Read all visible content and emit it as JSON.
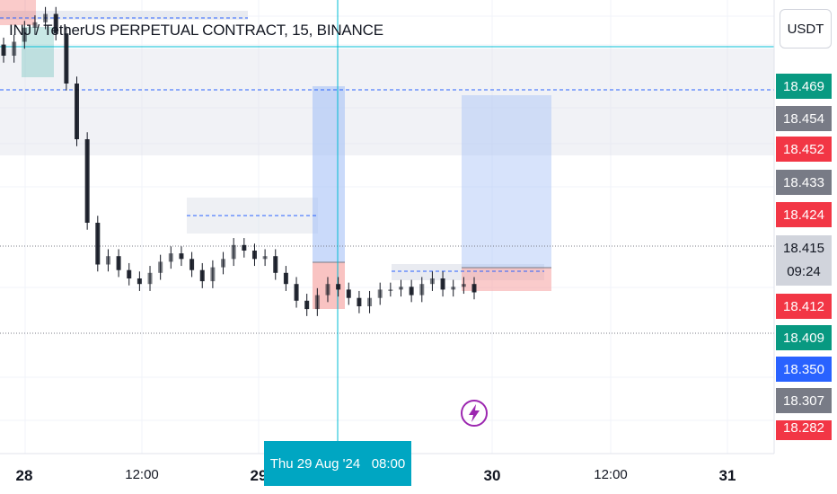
{
  "title": "INJ / TetherUS PERPETUAL CONTRACT, 15, BINANCE",
  "currency_button": "USDT",
  "colors": {
    "up": "#26a69a",
    "down": "#ef5350",
    "blue_line": "#2962ff",
    "crosshair": "#00bcd4",
    "zone_gray": "#e0e3eb",
    "target_blue": "#a6c1f7",
    "stop_red": "#f7a9a8"
  },
  "price_scale": [
    {
      "label": "18.469",
      "color": "#089981"
    },
    {
      "label": "18.454",
      "color": "#787b86"
    },
    {
      "label": "18.452",
      "color": "#f23645"
    },
    {
      "label": "18.433",
      "color": "#787b86"
    },
    {
      "label": "18.424",
      "color": "#f23645"
    },
    {
      "label": "18.415",
      "countdown": "09:24",
      "color": "#d1d4dc"
    },
    {
      "label": "18.412",
      "color": "#f23645"
    },
    {
      "label": "18.409",
      "color": "#089981"
    },
    {
      "label": "18.350",
      "color": "#2962ff"
    },
    {
      "label": "18.307",
      "color": "#787b86"
    },
    {
      "label": "18.282",
      "color": "#f23645"
    }
  ],
  "time_axis": {
    "labels": [
      {
        "text": "28",
        "bold": true
      },
      {
        "text": "12:00",
        "bold": false
      },
      {
        "text": "29",
        "bold": true
      },
      {
        "text": "30",
        "bold": true
      },
      {
        "text": "12:00",
        "bold": false
      },
      {
        "text": "31",
        "bold": true
      }
    ],
    "crosshair_label": "Thu 29 Aug '24   08:00"
  },
  "chart_data": {
    "type": "candlestick",
    "symbol": "INJ / TetherUS PERPETUAL CONTRACT",
    "interval": "15",
    "exchange": "BINANCE",
    "current_price": 18.415,
    "countdown": "09:24",
    "close_series_approx": [
      18.5,
      18.505,
      18.51,
      18.512,
      18.515,
      18.508,
      18.49,
      18.47,
      18.44,
      18.425,
      18.428,
      18.423,
      18.42,
      18.418,
      18.422,
      18.426,
      18.429,
      18.427,
      18.423,
      18.419,
      18.424,
      18.427,
      18.432,
      18.43,
      18.427,
      18.428,
      18.422,
      18.418,
      18.412,
      18.409,
      18.414,
      18.418,
      18.416,
      18.413,
      18.41,
      18.413,
      18.416,
      18.416,
      18.417,
      18.414,
      18.418,
      18.42,
      18.416,
      18.417,
      18.418,
      18.415
    ],
    "levels": [
      18.469,
      18.454,
      18.452,
      18.433,
      18.424,
      18.412,
      18.409
    ]
  }
}
